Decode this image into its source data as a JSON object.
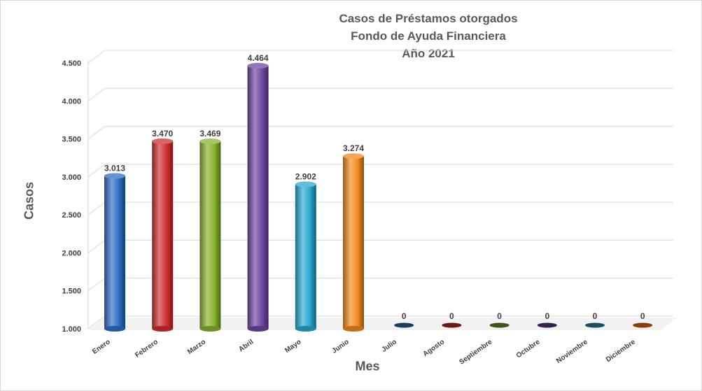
{
  "chart_data": {
    "type": "bar",
    "title_lines": [
      "Casos de Préstamos otorgados",
      "Fondo de Ayuda Financiera",
      "Año 2021"
    ],
    "xlabel": "Mes",
    "ylabel": "Casos",
    "categories": [
      "Enero",
      "Febrero",
      "Marzo",
      "Abril",
      "Mayo",
      "Junio",
      "Julio",
      "Agosto",
      "Septiembre",
      "Octubre",
      "Noviembre",
      "Diciembre"
    ],
    "values": [
      3013,
      3470,
      3469,
      4464,
      2902,
      3274,
      0,
      0,
      0,
      0,
      0,
      0
    ],
    "data_labels": [
      "3.013",
      "3.470",
      "3.469",
      "4.464",
      "2.902",
      "3.274",
      "0",
      "0",
      "0",
      "0",
      "0",
      "0"
    ],
    "yticks": [
      1000,
      1500,
      2000,
      2500,
      3000,
      3500,
      4000,
      4500
    ],
    "ytick_labels": [
      "1.000",
      "1.500",
      "2.000",
      "2.500",
      "3.000",
      "3.500",
      "4.000",
      "4.500"
    ],
    "ylim": [
      1000,
      4500
    ],
    "grid": true,
    "legend": "none",
    "colors": [
      "#2e6fc4",
      "#cf3030",
      "#88b32e",
      "#6e47a1",
      "#2aa9cf",
      "#f28a1f",
      "#1f3b63",
      "#6e1818",
      "#3f561a",
      "#33244f",
      "#17515f",
      "#8a3f0b"
    ]
  }
}
